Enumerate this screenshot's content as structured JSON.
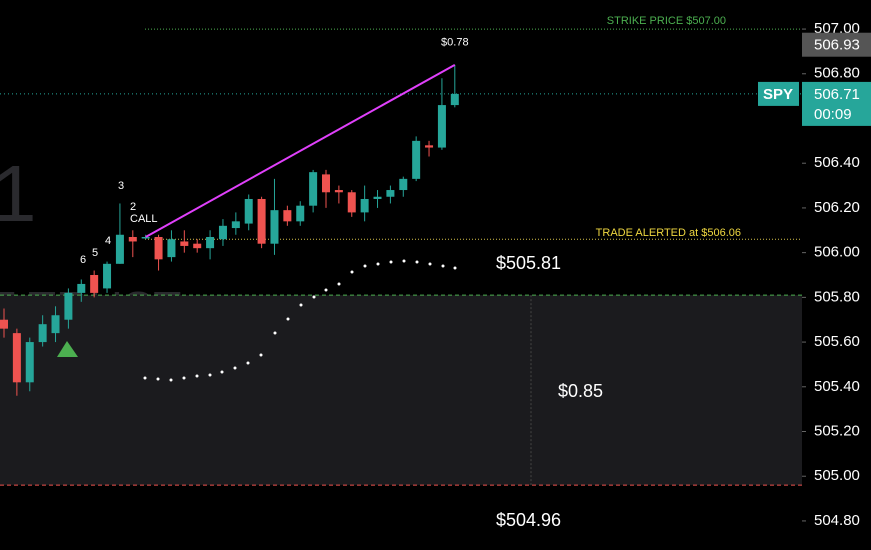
{
  "chart_data": {
    "type": "candlestick",
    "categories": [
      null,
      null,
      null,
      null,
      null,
      null,
      null,
      null,
      null,
      null,
      null,
      null,
      null,
      null,
      null,
      null,
      null,
      null,
      null,
      null,
      null,
      null,
      null,
      null,
      null,
      null,
      null,
      null,
      null,
      null,
      null,
      null,
      null,
      null,
      null,
      null
    ],
    "open": [
      505.7,
      505.64,
      505.42,
      505.6,
      505.64,
      505.7,
      505.82,
      505.9,
      505.84,
      505.95,
      506.07,
      506.07,
      506.07,
      505.98,
      506.05,
      506.04,
      506.02,
      506.06,
      506.11,
      506.13,
      506.24,
      506.04,
      506.19,
      506.14,
      506.21,
      506.35,
      506.28,
      506.27,
      506.18,
      506.24,
      506.25,
      506.28,
      506.33,
      506.48,
      506.47,
      506.66
    ],
    "high": [
      505.75,
      505.66,
      505.62,
      505.72,
      505.76,
      505.84,
      505.88,
      505.92,
      505.96,
      506.22,
      506.1,
      506.08,
      506.08,
      506.1,
      506.1,
      506.06,
      506.1,
      506.15,
      506.18,
      506.26,
      506.25,
      506.33,
      506.21,
      506.23,
      506.37,
      506.37,
      506.3,
      506.28,
      506.3,
      506.28,
      506.3,
      506.34,
      506.52,
      506.5,
      506.78,
      506.84
    ],
    "low": [
      505.62,
      505.36,
      505.38,
      505.58,
      505.6,
      505.66,
      505.78,
      505.8,
      505.82,
      505.95,
      505.98,
      506.06,
      505.92,
      505.96,
      506.0,
      506.0,
      505.97,
      506.03,
      506.08,
      506.1,
      506.02,
      505.99,
      506.12,
      506.12,
      506.18,
      506.2,
      506.22,
      506.16,
      506.14,
      506.2,
      506.22,
      506.25,
      506.32,
      506.43,
      506.46,
      506.65
    ],
    "close": [
      505.66,
      505.42,
      505.6,
      505.68,
      505.72,
      505.82,
      505.86,
      505.82,
      505.95,
      506.08,
      506.05,
      506.07,
      505.97,
      506.06,
      506.03,
      506.02,
      506.07,
      506.12,
      506.14,
      506.24,
      506.04,
      506.19,
      506.14,
      506.21,
      506.36,
      506.27,
      506.27,
      506.18,
      506.24,
      506.25,
      506.28,
      506.33,
      506.5,
      506.47,
      506.66,
      506.71
    ],
    "up_color": "#26a69a",
    "down_color": "#ef5350",
    "ylim": [
      504.67,
      507.13
    ],
    "yticks": [
      {
        "value": 504.8,
        "label": "504.80"
      },
      {
        "value": 505.0,
        "label": "505.00"
      },
      {
        "value": 505.2,
        "label": "505.20"
      },
      {
        "value": 505.4,
        "label": "505.40"
      },
      {
        "value": 505.6,
        "label": "505.60"
      },
      {
        "value": 505.8,
        "label": "505.80"
      },
      {
        "value": 506.0,
        "label": "506.00"
      },
      {
        "value": 506.2,
        "label": "506.20"
      },
      {
        "value": 506.4,
        "label": "506.40"
      },
      {
        "value": 506.6,
        "label": "506.60"
      },
      {
        "value": 506.8,
        "label": "506.80"
      },
      {
        "value": 507.0,
        "label": "507.00"
      }
    ],
    "strike": {
      "value": 507.0,
      "label": "STRIKE PRICE $507.00"
    },
    "alert": {
      "value": 506.06,
      "label": "TRADE ALERTED at $506.06"
    },
    "target_box": {
      "top": {
        "value": 505.81,
        "label": "$505.81"
      },
      "bottom": {
        "value": 504.96,
        "label": "$504.96"
      },
      "range": {
        "value": 0.85,
        "label": "$0.85"
      }
    },
    "trend_gain": {
      "value": 0.78,
      "label": "$0.78"
    },
    "annotations": [
      "6",
      "5",
      "4",
      "3",
      "2",
      "CALL"
    ],
    "watermark": [
      "1",
      "F TRUST"
    ],
    "price_tags": {
      "high": {
        "value": 506.93,
        "label": "506.93"
      },
      "symbol": "SPY",
      "last": {
        "value": 506.71,
        "label": "506.71"
      },
      "countdown": "00:09"
    }
  }
}
